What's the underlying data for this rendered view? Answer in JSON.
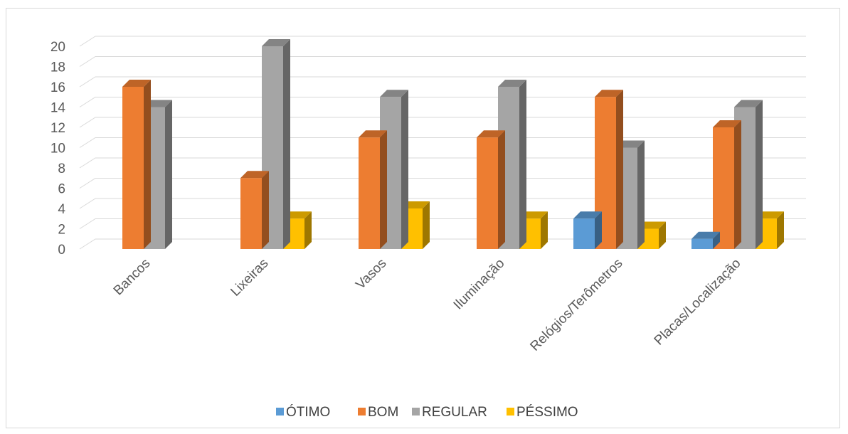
{
  "chart_data": {
    "type": "bar",
    "style": "3d-clustered-column",
    "title": "",
    "xlabel": "",
    "ylabel": "",
    "ylim": [
      0,
      20
    ],
    "yticks": [
      0,
      2,
      4,
      6,
      8,
      10,
      12,
      14,
      16,
      18,
      20
    ],
    "grid": true,
    "legend_position": "bottom",
    "categories": [
      "Bancos",
      "Lixeiras",
      "Vasos",
      "Iluminação",
      "Relógios/Terômetros",
      "Placas/Localização"
    ],
    "series": [
      {
        "name": "ÓTIMO",
        "color": "#5B9BD5",
        "values": [
          0,
          0,
          0,
          0,
          3,
          1
        ]
      },
      {
        "name": "BOM",
        "color": "#ED7D31",
        "values": [
          16,
          7,
          11,
          11,
          15,
          12
        ]
      },
      {
        "name": "REGULAR",
        "color": "#A5A5A5",
        "values": [
          14,
          20,
          15,
          16,
          10,
          14
        ]
      },
      {
        "name": "PÉSSIMO",
        "color": "#FFC000",
        "values": [
          0,
          3,
          4,
          3,
          2,
          3
        ]
      }
    ]
  }
}
